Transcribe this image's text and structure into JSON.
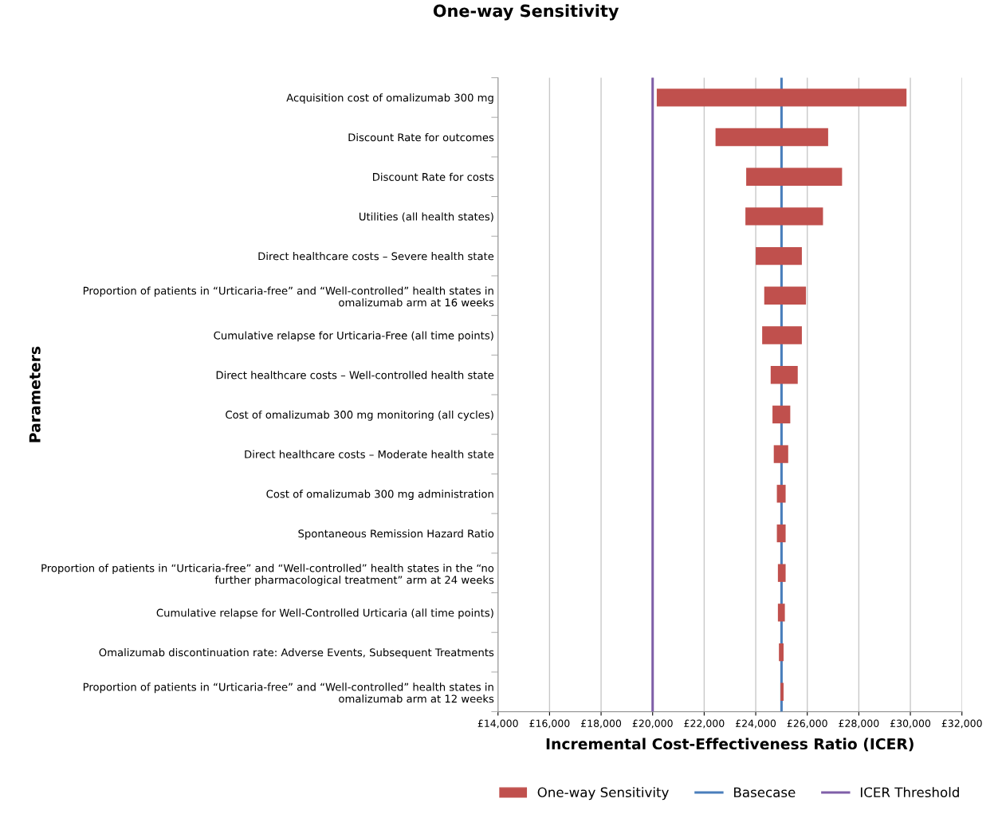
{
  "chart_data": {
    "type": "bar",
    "orientation": "horizontal",
    "title": "One-way Sensitivity",
    "xlabel": "Incremental Cost-Effectiveness Ratio (ICER)",
    "ylabel": "Parameters",
    "categories": [
      "Acquisition cost of omalizumab 300 mg",
      "Discount Rate for outcomes",
      "Discount Rate for costs",
      "Utilities (all health states)",
      "Direct healthcare costs – Severe health state",
      "Proportion of patients in “Urticaria-free” and “Well-controlled” health states in\nomalizumab arm at 16 weeks",
      "Cumulative relapse for Urticaria-Free (all time points)",
      "Direct healthcare costs – Well-controlled health state",
      "Cost of omalizumab 300 mg monitoring (all cycles)",
      "Direct healthcare costs – Moderate health state",
      "Cost of omalizumab 300 mg administration",
      "Spontaneous Remission Hazard Ratio",
      "Proportion of patients in “Urticaria-free” and “Well-controlled” health states in the “no\nfurther pharmacological treatment” arm at 24 weeks",
      "Cumulative relapse for Well-Controlled Urticaria (all time points)",
      "Omalizumab discontinuation rate: Adverse Events, Subsequent Treatments",
      "Proportion of patients in “Urticaria-free” and “Well-controlled” health states in\nomalizumab arm at 12 weeks"
    ],
    "series": [
      {
        "name": "One-way Sensitivity",
        "color": "#c0504d",
        "base": [
          20160,
          22440,
          23630,
          23600,
          24000,
          24330,
          24250,
          24580,
          24650,
          24700,
          24820,
          24820,
          24860,
          24860,
          24900,
          24960
        ],
        "values": [
          9690,
          4370,
          3720,
          3010,
          1790,
          1620,
          1540,
          1050,
          690,
          560,
          340,
          340,
          300,
          270,
          180,
          120
        ]
      }
    ],
    "ref_lines": [
      {
        "axis": "x",
        "value": 25000,
        "label": "Basecase",
        "color": "#4a7ebb"
      },
      {
        "axis": "x",
        "value": 20000,
        "label": "ICER Threshold",
        "color": "#7f5fa8"
      }
    ],
    "xlim": [
      14000,
      32000
    ],
    "xticks": [
      {
        "value": 14000,
        "label": "£14,000"
      },
      {
        "value": 16000,
        "label": "£16,000"
      },
      {
        "value": 18000,
        "label": "£18,000"
      },
      {
        "value": 20000,
        "label": "£20,000"
      },
      {
        "value": 22000,
        "label": "£22,000"
      },
      {
        "value": 24000,
        "label": "£24,000"
      },
      {
        "value": 26000,
        "label": "£26,000"
      },
      {
        "value": 28000,
        "label": "£28,000"
      },
      {
        "value": 30000,
        "label": "£30,000"
      },
      {
        "value": 32000,
        "label": "£32,000"
      }
    ],
    "grid": "x",
    "legend": "bottom"
  }
}
